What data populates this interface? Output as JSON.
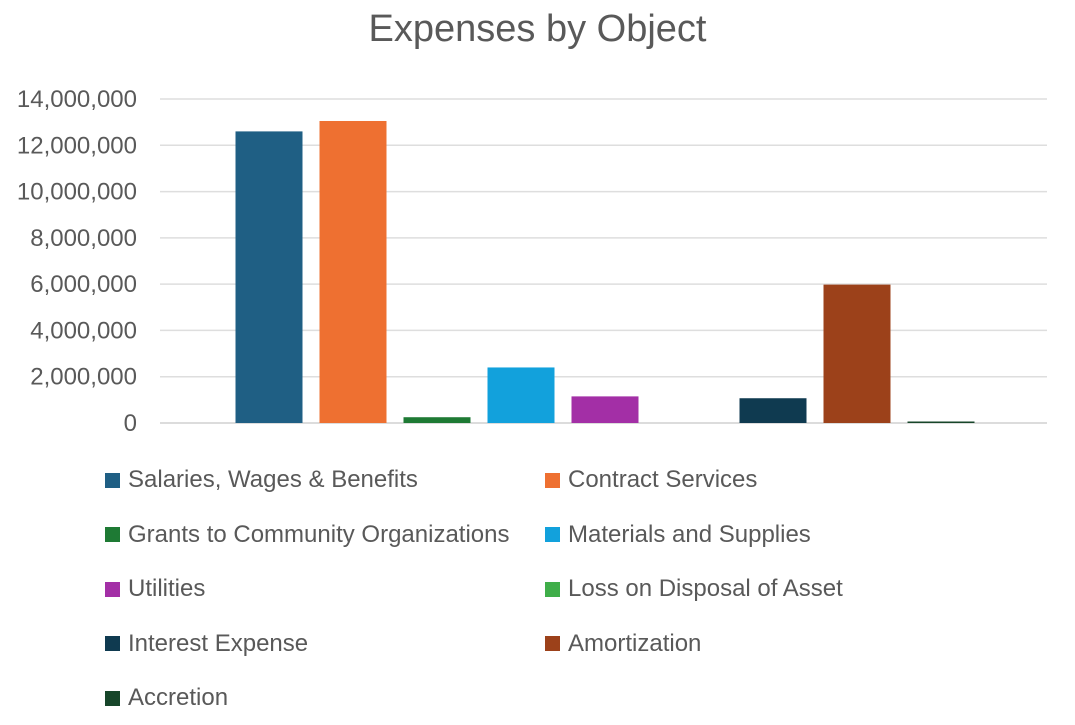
{
  "chart_data": {
    "type": "bar",
    "title": "Expenses by Object",
    "xlabel": "",
    "ylabel": "",
    "ylim": [
      0,
      14000000
    ],
    "yticks": [
      0,
      2000000,
      4000000,
      6000000,
      8000000,
      10000000,
      12000000,
      14000000
    ],
    "ytick_labels": [
      "0",
      "2,000,000",
      "4,000,000",
      "6,000,000",
      "8,000,000",
      "10,000,000",
      "12,000,000",
      "14,000,000"
    ],
    "grid": true,
    "legend_position": "bottom",
    "series": [
      {
        "name": "Salaries, Wages & Benefits",
        "value": 12600000,
        "color": "#1f5f84"
      },
      {
        "name": "Contract Services",
        "value": 13050000,
        "color": "#ee7031"
      },
      {
        "name": "Grants to Community Organizations",
        "value": 250000,
        "color": "#1e7a34"
      },
      {
        "name": "Materials and Supplies",
        "value": 2400000,
        "color": "#12a1dc"
      },
      {
        "name": "Utilities",
        "value": 1150000,
        "color": "#a32fa6"
      },
      {
        "name": "Loss on Disposal of Asset",
        "value": 0,
        "color": "#3fae49"
      },
      {
        "name": "Interest Expense",
        "value": 1070000,
        "color": "#0f3a50"
      },
      {
        "name": "Amortization",
        "value": 5980000,
        "color": "#9c411a"
      },
      {
        "name": "Accretion",
        "value": 30000,
        "color": "#17462a"
      }
    ]
  }
}
